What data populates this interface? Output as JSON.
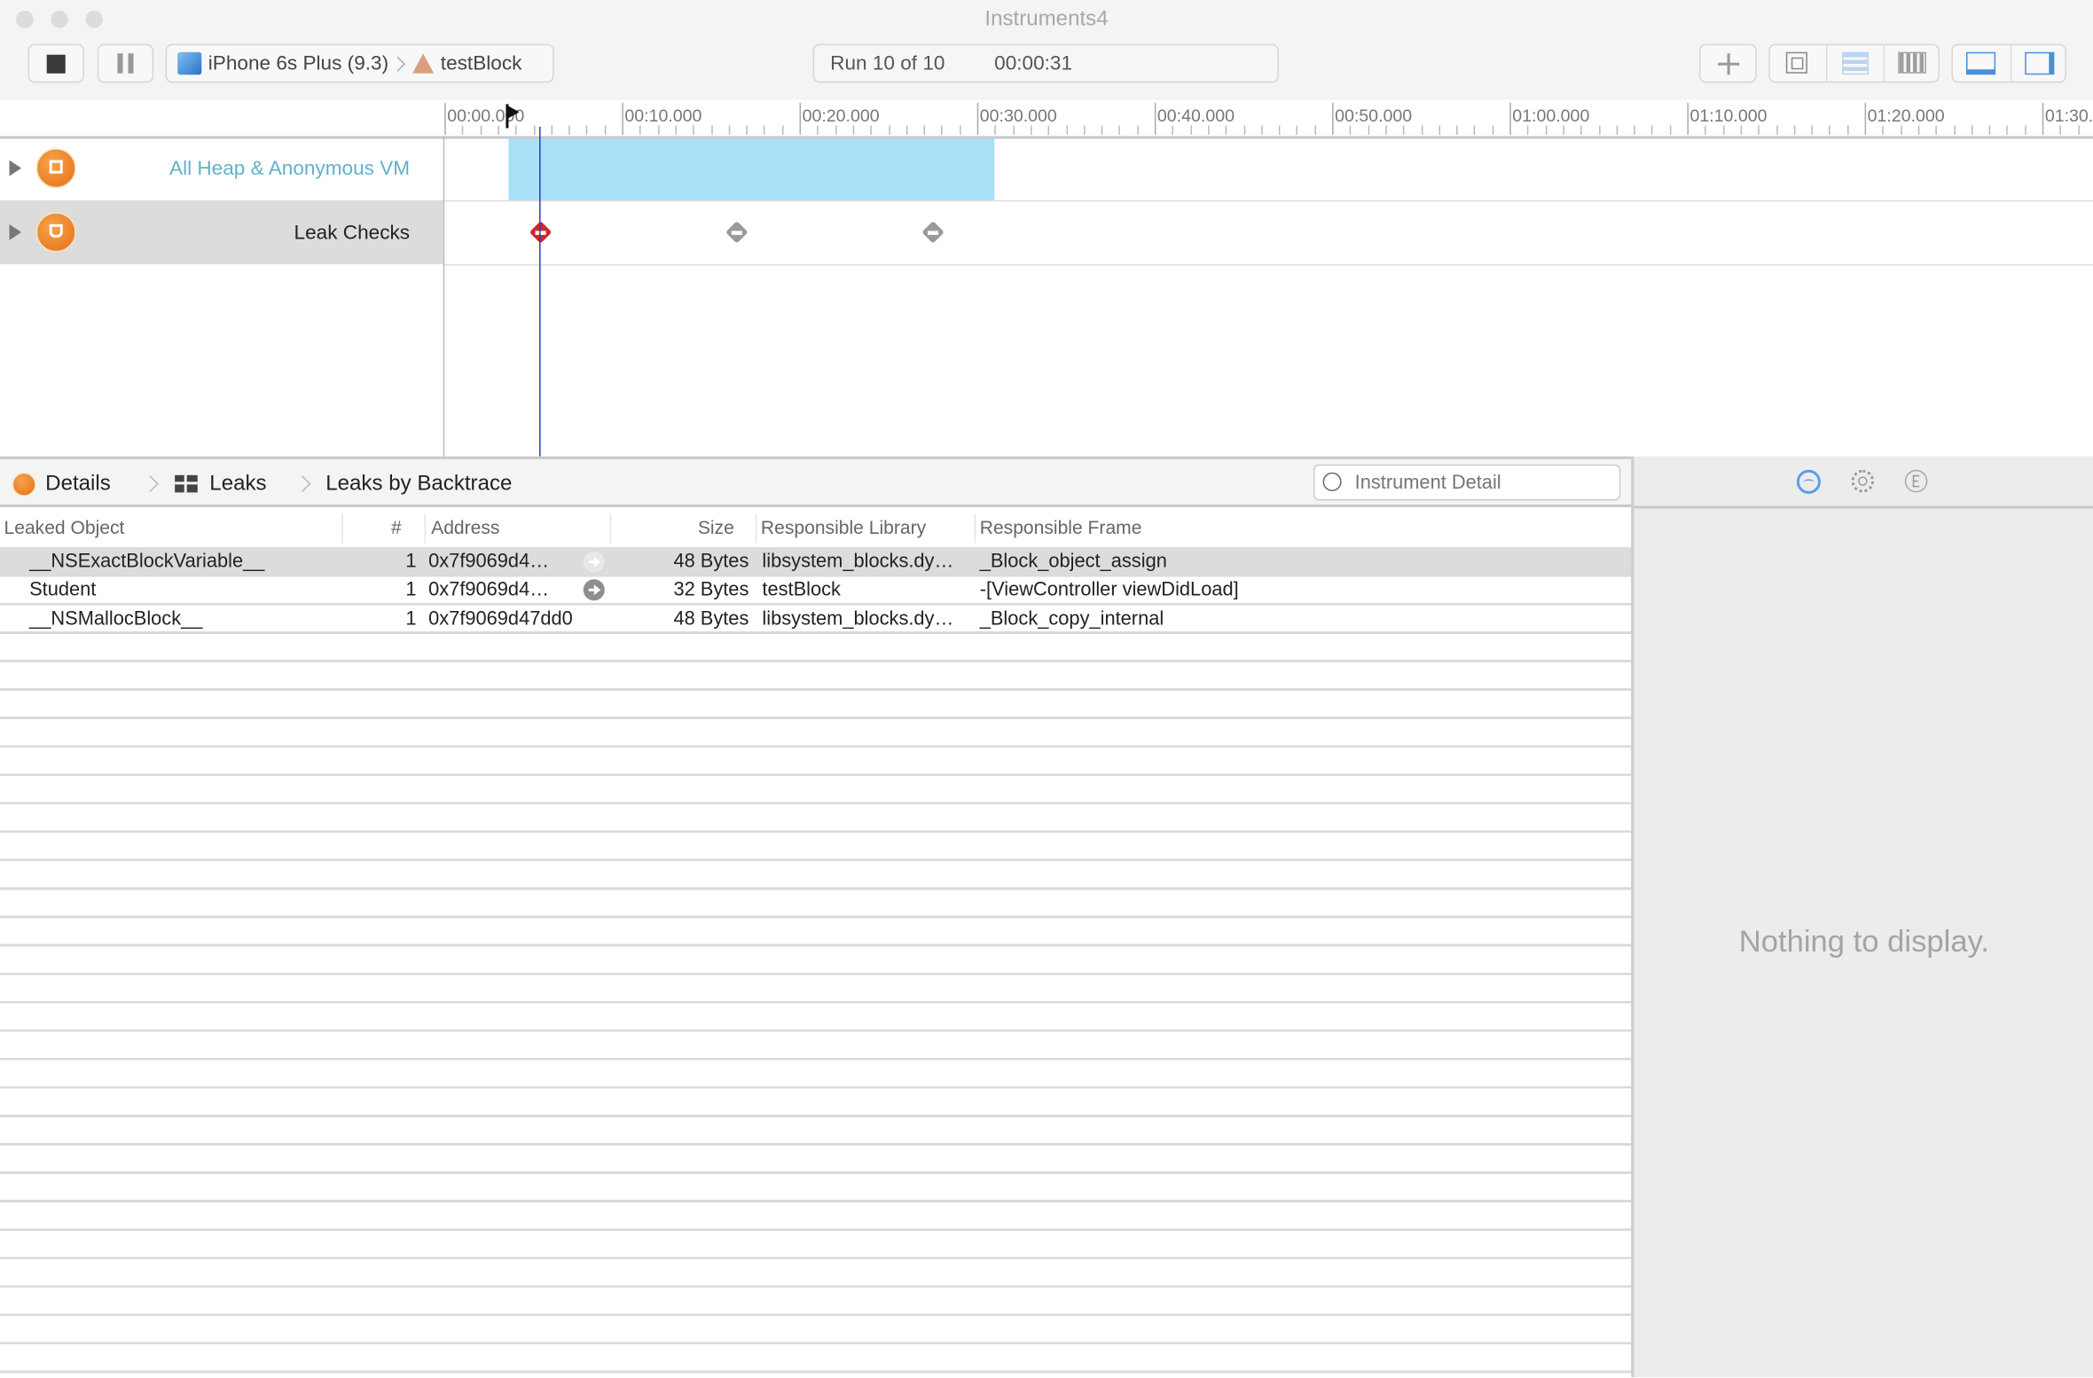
{
  "window": {
    "title": "Instruments4"
  },
  "toolbar": {
    "device": "iPhone 6s Plus (9.3)",
    "target": "testBlock",
    "run": "Run 10 of 10",
    "elapsed": "00:00:31",
    "buttons": [
      "stop-button",
      "pause-button",
      "add-instrument-button",
      "cpu-view-button",
      "list-view-button",
      "grid-view-button",
      "bottom-panel-toggle",
      "right-panel-toggle"
    ]
  },
  "ruler": {
    "ticks": [
      "00:00.000",
      "00:10.000",
      "00:20.000",
      "00:30.000",
      "00:40.000",
      "00:50.000",
      "01:00.000",
      "01:10.000",
      "01:20.000",
      "01:30.000"
    ]
  },
  "tracks": [
    {
      "name": "All Heap & Anonymous VM",
      "color": "#5fb3c9"
    },
    {
      "name": "Leak Checks",
      "selected": true
    }
  ],
  "leak_checks": [
    {
      "status": "leaks-found",
      "color": "#d0262c"
    },
    {
      "status": "no-leaks",
      "color": "#9a9a9a"
    },
    {
      "status": "no-leaks",
      "color": "#9a9a9a"
    }
  ],
  "detail": {
    "breadcrumbs": [
      "Details",
      "Leaks",
      "Leaks by Backtrace"
    ],
    "search_placeholder": "Instrument Detail"
  },
  "table": {
    "columns": [
      "Leaked Object",
      "#",
      "Address",
      "Size",
      "Responsible Library",
      "Responsible Frame"
    ],
    "rows": [
      {
        "object": "__NSExactBlockVariable__",
        "count": "1",
        "address": "0x7f9069d4…",
        "size": "48 Bytes",
        "library": "libsystem_blocks.dy…",
        "frame": "_Block_object_assign",
        "selected": true
      },
      {
        "object": "Student",
        "count": "1",
        "address": "0x7f9069d4…",
        "size": "32 Bytes",
        "library": "testBlock",
        "frame": "-[ViewController viewDidLoad]"
      },
      {
        "object": "__NSMallocBlock__",
        "count": "1",
        "address": "0x7f9069d47dd0",
        "size": "48 Bytes",
        "library": "libsystem_blocks.dy…",
        "frame": "_Block_copy_internal"
      }
    ]
  },
  "inspector": {
    "empty_text": "Nothing to display.",
    "accent": "#5b9ee8"
  }
}
